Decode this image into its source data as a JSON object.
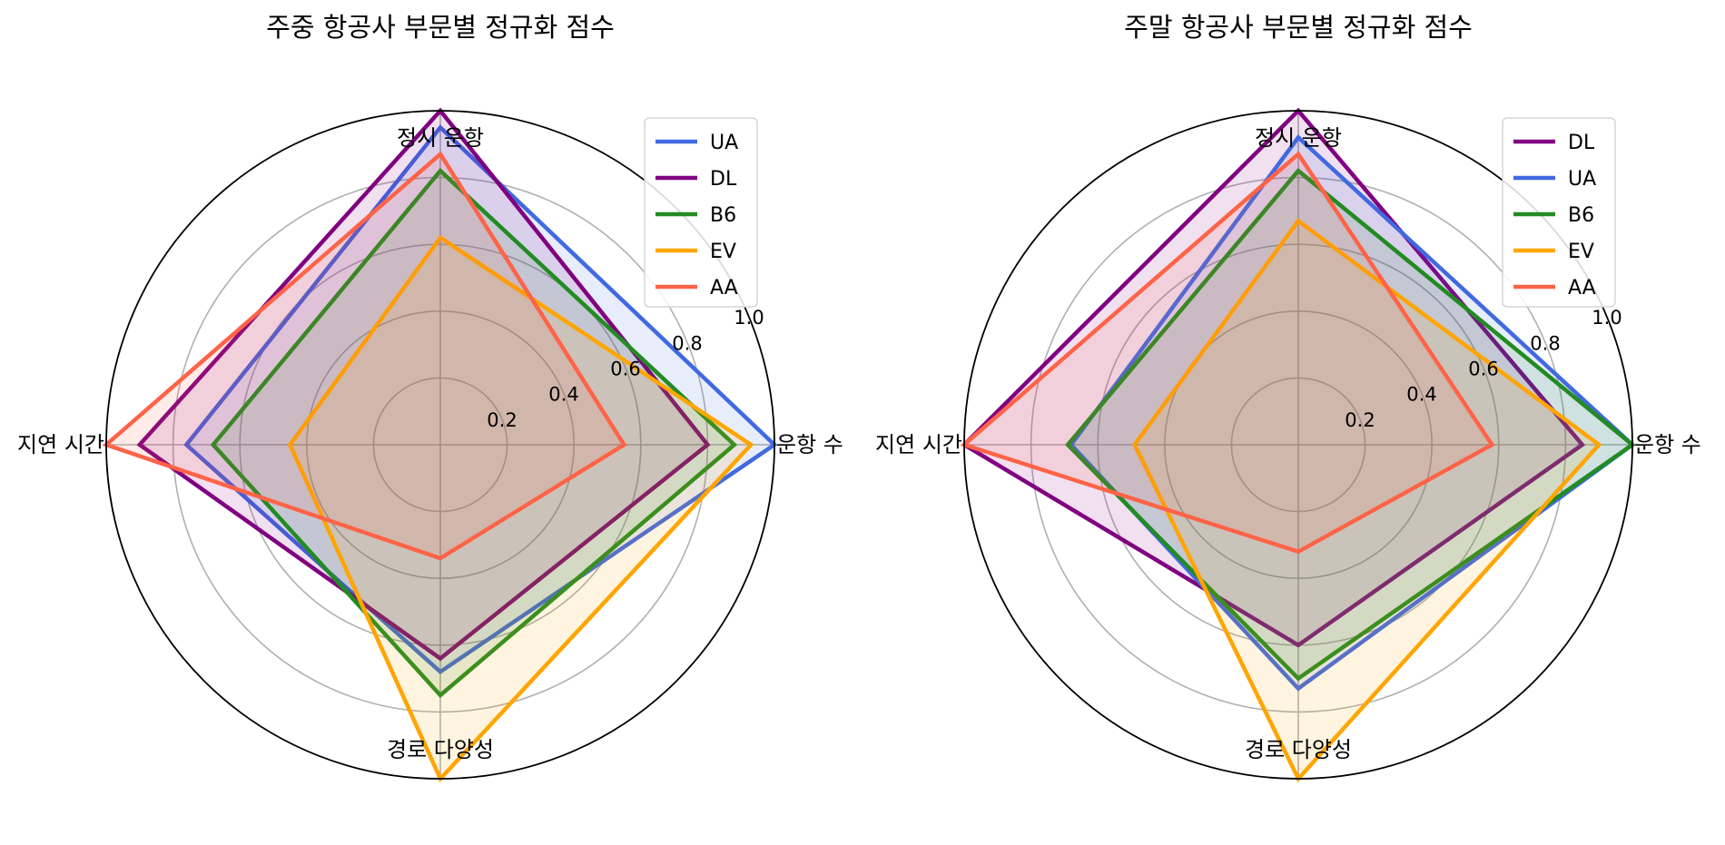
{
  "chart_data": [
    {
      "type": "radar",
      "title": "주중 항공사 부문별 정규화 점수",
      "axes": [
        "운항 수",
        "경로 다양성",
        "지연 시간",
        "정시 운항"
      ],
      "rlim": [
        0,
        1.0
      ],
      "rticks": [
        "0.2",
        "0.4",
        "0.6",
        "0.8",
        "1.0"
      ],
      "rtick_values": [
        0.2,
        0.4,
        0.6,
        0.8,
        1.0
      ],
      "grid": true,
      "legend_position": "top-right",
      "series": [
        {
          "name": "UA",
          "color": "#4169E1",
          "values": [
            1.0,
            0.68,
            0.76,
            0.95
          ]
        },
        {
          "name": "DL",
          "color": "#800080",
          "values": [
            0.8,
            0.64,
            0.9,
            1.0
          ]
        },
        {
          "name": "B6",
          "color": "#228B22",
          "values": [
            0.88,
            0.75,
            0.68,
            0.82
          ]
        },
        {
          "name": "EV",
          "color": "#FFA500",
          "values": [
            0.93,
            1.0,
            0.45,
            0.62
          ]
        },
        {
          "name": "AA",
          "color": "#FF6347",
          "values": [
            0.55,
            0.34,
            1.0,
            0.87
          ]
        }
      ]
    },
    {
      "type": "radar",
      "title": "주말 항공사 부문별 정규화 점수",
      "axes": [
        "운항 수",
        "경로 다양성",
        "지연 시간",
        "정시 운항"
      ],
      "rlim": [
        0,
        1.0
      ],
      "rticks": [
        "0.2",
        "0.4",
        "0.6",
        "0.8",
        "1.0"
      ],
      "rtick_values": [
        0.2,
        0.4,
        0.6,
        0.8,
        1.0
      ],
      "grid": true,
      "legend_position": "top-right",
      "series": [
        {
          "name": "DL",
          "color": "#800080",
          "values": [
            0.85,
            0.6,
            1.0,
            1.0
          ]
        },
        {
          "name": "UA",
          "color": "#4169E1",
          "values": [
            1.0,
            0.73,
            0.68,
            0.92
          ]
        },
        {
          "name": "B6",
          "color": "#228B22",
          "values": [
            1.0,
            0.7,
            0.69,
            0.82
          ]
        },
        {
          "name": "EV",
          "color": "#FFA500",
          "values": [
            0.9,
            1.0,
            0.49,
            0.67
          ]
        },
        {
          "name": "AA",
          "color": "#FF6347",
          "values": [
            0.58,
            0.32,
            1.0,
            0.87
          ]
        }
      ]
    }
  ]
}
